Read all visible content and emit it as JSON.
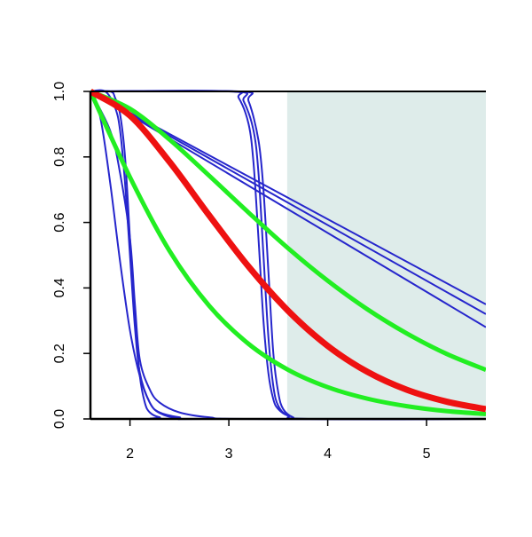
{
  "chart_data": {
    "type": "line",
    "xlim": [
      1.6,
      5.6
    ],
    "ylim": [
      0,
      1
    ],
    "xticks": [
      2,
      3,
      4,
      5
    ],
    "yticks": [
      {
        "value": 0,
        "label": "0.0"
      },
      {
        "value": 0.2,
        "label": "0.2"
      },
      {
        "value": 0.4,
        "label": "0.4"
      },
      {
        "value": 0.6,
        "label": "0.6"
      },
      {
        "value": 0.8,
        "label": "0.8"
      },
      {
        "value": 1,
        "label": "1.0"
      }
    ],
    "shaded_region": {
      "from": 3.59,
      "to": 5.6,
      "color": "#deecea"
    },
    "series": [
      {
        "color": "#2626cc",
        "width": 2,
        "x": [
          1.6,
          5.6
        ],
        "values": [
          1,
          0.35
        ]
      },
      {
        "color": "#2626cc",
        "width": 2,
        "x": [
          1.6,
          5.6
        ],
        "values": [
          1,
          0.32
        ]
      },
      {
        "color": "#2626cc",
        "width": 2,
        "x": [
          1.6,
          5.6
        ],
        "values": [
          1,
          0.28
        ]
      },
      {
        "color": "#2626cc",
        "width": 2,
        "x": [
          1.6,
          3.0,
          3.1,
          3.2,
          3.25,
          3.3,
          3.35,
          3.4,
          3.45,
          3.5,
          3.6,
          3.8,
          5.6
        ],
        "values": [
          1,
          1,
          0.98,
          0.9,
          0.78,
          0.55,
          0.3,
          0.14,
          0.06,
          0.03,
          0.01,
          0,
          0
        ]
      },
      {
        "color": "#2626cc",
        "width": 2,
        "x": [
          1.6,
          3.05,
          3.15,
          3.25,
          3.3,
          3.35,
          3.4,
          3.45,
          3.5,
          3.6,
          3.8,
          5.6
        ],
        "values": [
          1,
          1,
          0.97,
          0.88,
          0.75,
          0.5,
          0.25,
          0.1,
          0.04,
          0.01,
          0,
          0
        ]
      },
      {
        "color": "#2626cc",
        "width": 2,
        "x": [
          1.6,
          3.1,
          3.2,
          3.3,
          3.35,
          3.4,
          3.45,
          3.5,
          3.55,
          3.65,
          3.8,
          5.6
        ],
        "values": [
          1,
          1,
          0.97,
          0.85,
          0.7,
          0.45,
          0.2,
          0.08,
          0.03,
          0.005,
          0,
          0
        ]
      },
      {
        "color": "#2626cc",
        "width": 2,
        "x": [
          1.6,
          1.8,
          1.85,
          1.9,
          1.95,
          2.0,
          2.05,
          2.1,
          2.15,
          2.2,
          2.3,
          2.5,
          5.6
        ],
        "values": [
          1,
          1,
          0.98,
          0.93,
          0.8,
          0.55,
          0.3,
          0.13,
          0.05,
          0.02,
          0.005,
          0,
          0
        ]
      },
      {
        "color": "#2626cc",
        "width": 2,
        "x": [
          1.6,
          1.75,
          1.85,
          1.9,
          1.95,
          2.0,
          2.05,
          2.1,
          2.2,
          2.3,
          2.5,
          2.7,
          5.6
        ],
        "values": [
          1,
          1,
          0.95,
          0.88,
          0.72,
          0.5,
          0.28,
          0.14,
          0.05,
          0.02,
          0.005,
          0,
          0
        ]
      },
      {
        "color": "#2626cc",
        "width": 2,
        "x": [
          1.6,
          1.7,
          1.8,
          1.9,
          2.0,
          2.1,
          2.2,
          2.3,
          2.5,
          2.8,
          5.6
        ],
        "values": [
          1,
          0.92,
          0.72,
          0.48,
          0.27,
          0.13,
          0.05,
          0.018,
          0.001,
          0,
          0
        ]
      },
      {
        "color": "#2626cc",
        "width": 2,
        "x": [
          1.6,
          1.8,
          1.9,
          2.0,
          2.05,
          2.1,
          2.2,
          2.3,
          2.5,
          2.8,
          3.2,
          5.6
        ],
        "values": [
          1,
          0.88,
          0.75,
          0.55,
          0.35,
          0.18,
          0.09,
          0.05,
          0.02,
          0.005,
          0,
          0
        ]
      },
      {
        "color": "#22ee22",
        "width": 5,
        "x": [
          1.6,
          2.0,
          2.4,
          2.8,
          3.2,
          3.6,
          4.0,
          4.4,
          4.8,
          5.2,
          5.6
        ],
        "values": [
          1,
          0.947,
          0.853,
          0.743,
          0.63,
          0.521,
          0.422,
          0.335,
          0.261,
          0.199,
          0.15
        ]
      },
      {
        "color": "#22ee22",
        "width": 5,
        "x": [
          1.6,
          2.0,
          2.4,
          2.8,
          3.2,
          3.6,
          4.0,
          4.4,
          4.8,
          5.2,
          5.6
        ],
        "values": [
          1,
          0.738,
          0.513,
          0.346,
          0.229,
          0.15,
          0.097,
          0.062,
          0.039,
          0.024,
          0.015
        ]
      },
      {
        "color": "#ee1111",
        "width": 7,
        "x": [
          1.6,
          2.0,
          2.4,
          2.8,
          3.2,
          3.6,
          4.0,
          4.4,
          4.8,
          5.2,
          5.6
        ],
        "values": [
          1,
          0.926,
          0.785,
          0.622,
          0.465,
          0.33,
          0.223,
          0.144,
          0.089,
          0.053,
          0.03
        ]
      }
    ]
  }
}
